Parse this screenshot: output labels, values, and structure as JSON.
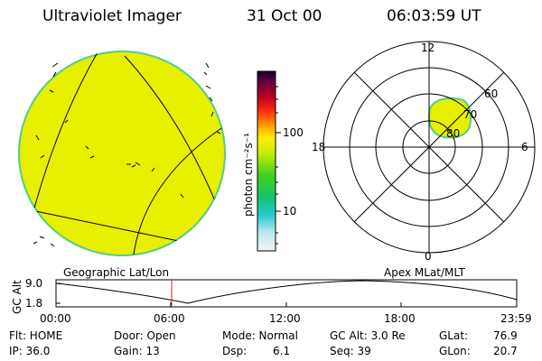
{
  "header": {
    "instrument": "Ultraviolet Imager",
    "date": "31 Oct 00",
    "time": "06:03:59 UT"
  },
  "colorbar": {
    "unit_label": "photon cm⁻²s⁻¹",
    "ticks": [
      "100",
      "10"
    ]
  },
  "polar_plot": {
    "clock_labels": {
      "top": "12",
      "left": "18",
      "right": "6",
      "bottom": "0"
    },
    "lat_labels": [
      "60",
      "70",
      "80"
    ]
  },
  "map_captions": {
    "left": "Geographic Lat/Lon",
    "right": "Apex MLat/MLT"
  },
  "altitude_panel": {
    "ylabel": "GC Alt",
    "yticks": [
      "9.0",
      "1.8"
    ],
    "xticks": [
      "00:00",
      "06:00",
      "12:00",
      "18:00",
      "23:59"
    ]
  },
  "info": {
    "flt": "Flt: HOME",
    "ip": "IP: 36.0",
    "door": "Door: Open",
    "gain": "Gain: 13",
    "mode": "Mode: Normal",
    "dsp_label": "Dsp:",
    "dsp_value": "6.1",
    "gc_alt": "GC Alt: 3.0 Re",
    "seq": "Seq: 39",
    "glat_label": "GLat:",
    "glat_value": "76.9",
    "glon_label": "GLon:",
    "glon_value": "20.7"
  },
  "colors": {
    "emission": "#e6f000",
    "limb": "#55cc88",
    "marker": "#cc2222"
  }
}
